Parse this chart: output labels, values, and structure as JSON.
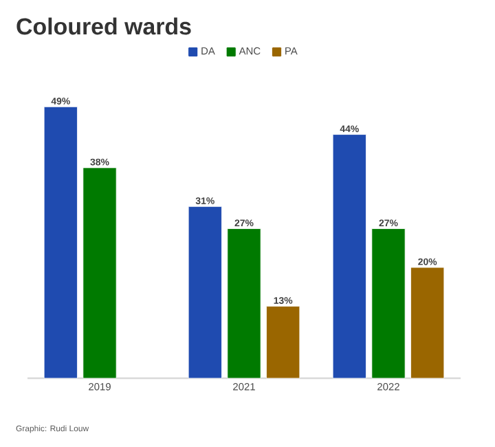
{
  "chart_data": {
    "type": "bar",
    "title": "Coloured wards",
    "categories": [
      "2019",
      "2021",
      "2022"
    ],
    "series": [
      {
        "name": "DA",
        "color": "#1f4bb0",
        "values": [
          49,
          31,
          44
        ],
        "value_labels": [
          "49%",
          "31%",
          "44%"
        ]
      },
      {
        "name": "ANC",
        "color": "#007a00",
        "values": [
          38,
          27,
          27
        ],
        "value_labels": [
          "38%",
          "27%",
          "27%"
        ]
      },
      {
        "name": "PA",
        "color": "#9a6600",
        "values": [
          null,
          13,
          20
        ],
        "value_labels": [
          null,
          "13%",
          "20%"
        ]
      }
    ],
    "legend": "top",
    "annotations": [
      "Graphic: Rudi Louw"
    ]
  }
}
